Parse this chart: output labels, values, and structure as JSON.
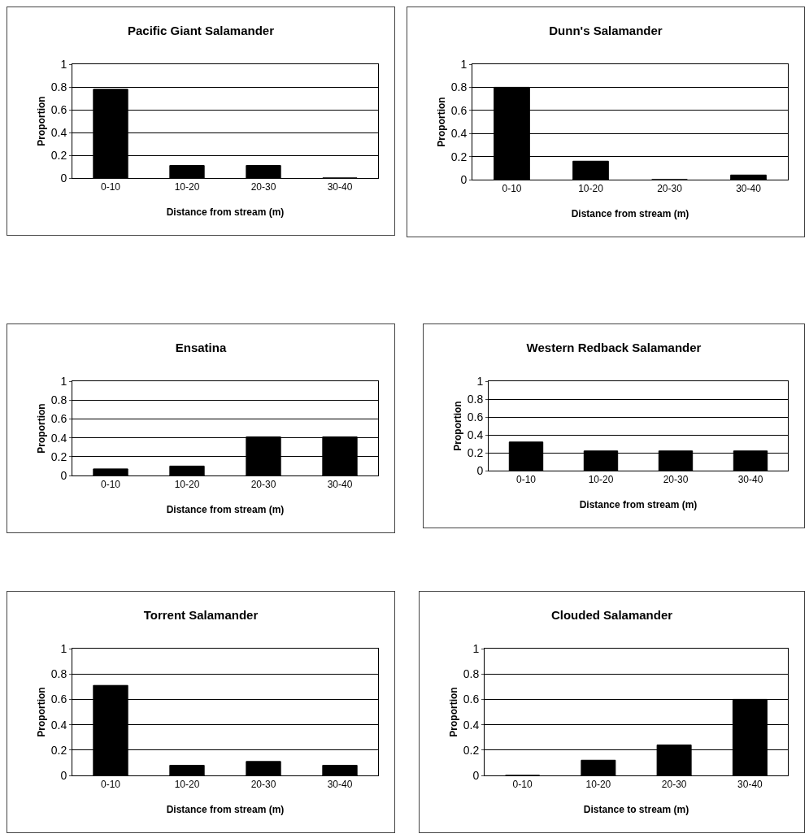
{
  "chart_data": [
    {
      "type": "bar",
      "title": "Pacific Giant Salamander",
      "xlabel": "Distance from stream (m)",
      "ylabel": "Proportion",
      "categories": [
        "0-10",
        "10-20",
        "20-30",
        "30-40"
      ],
      "values": [
        0.78,
        0.11,
        0.11,
        0
      ],
      "color": "#000000",
      "ylim": [
        0,
        1
      ],
      "yticks": [
        0,
        0.2,
        0.4,
        0.6,
        0.8,
        1
      ],
      "grid": "y"
    },
    {
      "type": "bar",
      "title": "Dunn's Salamander",
      "xlabel": "Distance from stream (m)",
      "ylabel": "Proportion",
      "categories": [
        "0-10",
        "10-20",
        "20-30",
        "30-40"
      ],
      "values": [
        0.8,
        0.16,
        0,
        0.04
      ],
      "color": "#000000",
      "ylim": [
        0,
        1
      ],
      "yticks": [
        0,
        0.2,
        0.4,
        0.6,
        0.8,
        1
      ],
      "grid": "y"
    },
    {
      "type": "bar",
      "title": "Ensatina",
      "xlabel": "Distance from stream (m)",
      "ylabel": "Proportion",
      "categories": [
        "0-10",
        "10-20",
        "20-30",
        "30-40"
      ],
      "values": [
        0.07,
        0.1,
        0.41,
        0.41
      ],
      "color": "#000000",
      "ylim": [
        0,
        1
      ],
      "yticks": [
        0,
        0.2,
        0.4,
        0.6,
        0.8,
        1
      ],
      "grid": "y"
    },
    {
      "type": "bar",
      "title": "Western Redback Salamander",
      "xlabel": "Distance from stream (m)",
      "ylabel": "Proportion",
      "categories": [
        "0-10",
        "10-20",
        "20-30",
        "30-40"
      ],
      "values": [
        0.32,
        0.22,
        0.22,
        0.22
      ],
      "color": "#000000",
      "ylim": [
        0,
        1
      ],
      "yticks": [
        0,
        0.2,
        0.4,
        0.6,
        0.8,
        1
      ],
      "grid": "y"
    },
    {
      "type": "bar",
      "title": "Torrent Salamander",
      "xlabel": "Distance from stream (m)",
      "ylabel": "Proportion",
      "categories": [
        "0-10",
        "10-20",
        "20-30",
        "30-40"
      ],
      "values": [
        0.71,
        0.08,
        0.11,
        0.08
      ],
      "color": "#000000",
      "ylim": [
        0,
        1
      ],
      "yticks": [
        0,
        0.2,
        0.4,
        0.6,
        0.8,
        1
      ],
      "grid": "y"
    },
    {
      "type": "bar",
      "title": "Clouded Salamander",
      "xlabel": "Distance to stream (m)",
      "ylabel": "Proportion",
      "categories": [
        "0-10",
        "10-20",
        "20-30",
        "30-40"
      ],
      "values": [
        0,
        0.12,
        0.24,
        0.6
      ],
      "color": "#000000",
      "ylim": [
        0,
        1
      ],
      "yticks": [
        0,
        0.2,
        0.4,
        0.6,
        0.8,
        1
      ],
      "grid": "y"
    }
  ]
}
